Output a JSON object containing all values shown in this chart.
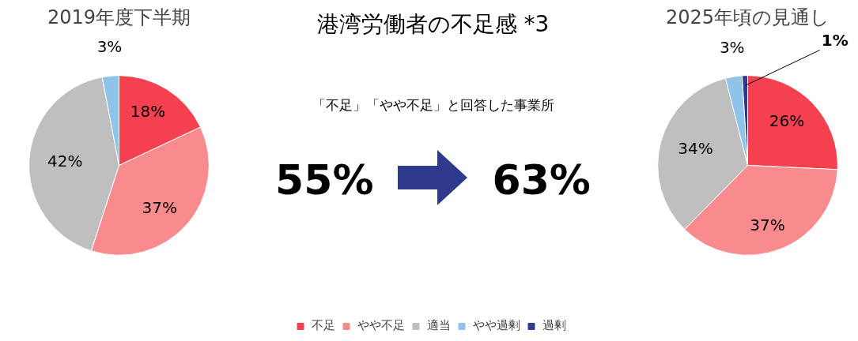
{
  "chart_data": [
    {
      "type": "pie",
      "title": "2019年度下半期",
      "categories": [
        "不足",
        "やや不足",
        "適当",
        "やや過剰",
        "過剰"
      ],
      "values": [
        18,
        37,
        42,
        3,
        0
      ],
      "colors": [
        "#f5404f",
        "#f98a8e",
        "#bfbfbf",
        "#8fc3e8",
        "#2f3a8f"
      ],
      "value_labels": [
        "18%",
        "37%",
        "42%",
        "3%",
        null
      ],
      "legend": "bottom"
    },
    {
      "type": "other",
      "title": "港湾労働者の不足感 *3",
      "annotations": [
        "「不足」「やや不足」と回答した事業所",
        "55%",
        "63%"
      ]
    },
    {
      "type": "pie",
      "title": "2025年頃の見通し",
      "values": [
        26,
        37,
        34,
        3,
        1
      ],
      "colors": [
        "#f5404f",
        "#f98a8e",
        "#bfbfbf",
        "#8fc3e8",
        "#2f3a8f"
      ],
      "value_labels": [
        "26%",
        "37%",
        "34%",
        "3%",
        "1%"
      ]
    }
  ]
}
